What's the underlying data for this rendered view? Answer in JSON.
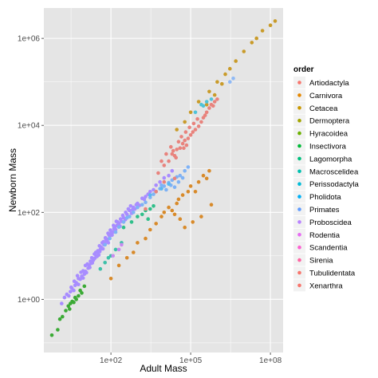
{
  "chart_data": {
    "type": "scatter",
    "xlabel": "Adult Mass",
    "ylabel": "Newborn Mass",
    "x_scale": "log10",
    "y_scale": "log10",
    "xlim": [
      0.3,
      300000000
    ],
    "ylim": [
      0.06,
      5000000
    ],
    "x_ticks": [
      {
        "value": 100,
        "label": "1e+02"
      },
      {
        "value": 100000,
        "label": "1e+05"
      },
      {
        "value": 100000000,
        "label": "1e+08"
      }
    ],
    "y_ticks": [
      {
        "value": 1,
        "label": "1e+00"
      },
      {
        "value": 100,
        "label": "1e+02"
      },
      {
        "value": 10000,
        "label": "1e+04"
      },
      {
        "value": 1000000,
        "label": "1e+06"
      }
    ],
    "grid": true,
    "panel_background": "#e5e5e5",
    "legend": {
      "title": "order",
      "placement": "right",
      "entries": [
        {
          "name": "Artiodactyla",
          "color": "#F8766D"
        },
        {
          "name": "Carnivora",
          "color": "#E58700"
        },
        {
          "name": "Cetacea",
          "color": "#C99800"
        },
        {
          "name": "Dermoptera",
          "color": "#A3A500"
        },
        {
          "name": "Hyracoidea",
          "color": "#6BB100"
        },
        {
          "name": "Insectivora",
          "color": "#00BA38"
        },
        {
          "name": "Lagomorpha",
          "color": "#00BF7D"
        },
        {
          "name": "Macroscelidea",
          "color": "#00C0AF"
        },
        {
          "name": "Perissodactyla",
          "color": "#00BCD8"
        },
        {
          "name": "Pholidota",
          "color": "#00B0F6"
        },
        {
          "name": "Primates",
          "color": "#619CFF"
        },
        {
          "name": "Proboscidea",
          "color": "#B983FF"
        },
        {
          "name": "Rodentia",
          "color": "#E76BF3"
        },
        {
          "name": "Scandentia",
          "color": "#FD61D1"
        },
        {
          "name": "Sirenia",
          "color": "#FF67A4"
        },
        {
          "name": "Tubulidentata",
          "color": "#F8766D"
        },
        {
          "name": "Xenarthra",
          "color": "#F8766D"
        }
      ]
    },
    "series": [
      {
        "name": "Rodentia",
        "color": "#A88CFF",
        "points": [
          [
            1.4,
            0.8
          ],
          [
            1.8,
            1.1
          ],
          [
            2.2,
            1.3
          ],
          [
            2.6,
            1.2
          ],
          [
            3,
            1.5
          ],
          [
            3.4,
            1.8
          ],
          [
            4,
            1.6
          ],
          [
            4.5,
            2.1
          ],
          [
            5,
            2.4
          ],
          [
            6,
            2.2
          ],
          [
            7,
            2.9
          ],
          [
            8,
            3.4
          ],
          [
            9,
            3.1
          ],
          [
            10,
            3.8
          ],
          [
            11,
            4.4
          ],
          [
            12,
            4.1
          ],
          [
            14,
            5.2
          ],
          [
            15,
            6
          ],
          [
            16,
            5.4
          ],
          [
            18,
            6.7
          ],
          [
            20,
            6.9
          ],
          [
            22,
            8
          ],
          [
            25,
            8.8
          ],
          [
            28,
            10
          ],
          [
            30,
            9.7
          ],
          [
            33,
            12
          ],
          [
            35,
            10.5
          ],
          [
            38,
            12.5
          ],
          [
            40,
            14
          ],
          [
            45,
            15
          ],
          [
            50,
            14.5
          ],
          [
            55,
            18
          ],
          [
            60,
            19
          ],
          [
            70,
            22
          ],
          [
            75,
            24
          ],
          [
            80,
            20
          ],
          [
            90,
            28
          ],
          [
            100,
            32
          ],
          [
            110,
            30
          ],
          [
            120,
            35
          ],
          [
            130,
            42
          ],
          [
            150,
            40
          ],
          [
            170,
            50
          ],
          [
            200,
            55
          ],
          [
            220,
            48
          ],
          [
            250,
            62
          ],
          [
            300,
            75
          ],
          [
            350,
            68
          ],
          [
            400,
            90
          ],
          [
            500,
            110
          ],
          [
            600,
            95
          ],
          [
            700,
            130
          ],
          [
            800,
            120
          ],
          [
            900,
            150
          ],
          [
            1000,
            160
          ],
          [
            1200,
            145
          ],
          [
            1500,
            210
          ],
          [
            1800,
            200
          ],
          [
            2000,
            230
          ],
          [
            2500,
            260
          ],
          [
            3000,
            300
          ],
          [
            4000,
            330
          ],
          [
            5000,
            420
          ],
          [
            7000,
            500
          ],
          [
            10000,
            620
          ],
          [
            15000,
            700
          ],
          [
            20000,
            900
          ],
          [
            6,
            3
          ],
          [
            9,
            4.5
          ],
          [
            13,
            6.5
          ],
          [
            17,
            7.5
          ],
          [
            24,
            11
          ],
          [
            32,
            13
          ],
          [
            42,
            16
          ],
          [
            52,
            21
          ],
          [
            65,
            24
          ],
          [
            85,
            30
          ],
          [
            105,
            36
          ],
          [
            140,
            45
          ],
          [
            180,
            60
          ],
          [
            230,
            70
          ],
          [
            280,
            85
          ],
          [
            360,
            100
          ],
          [
            450,
            120
          ],
          [
            550,
            140
          ],
          [
            650,
            115
          ],
          [
            3.2,
            1.9
          ],
          [
            4.2,
            2.6
          ],
          [
            5.5,
            3.5
          ],
          [
            7.5,
            4.2
          ],
          [
            11,
            6
          ],
          [
            19,
            9
          ],
          [
            27,
            12
          ],
          [
            37,
            17
          ],
          [
            47,
            20
          ],
          [
            62,
            26
          ],
          [
            78,
            33
          ],
          [
            95,
            39
          ],
          [
            125,
            50
          ],
          [
            160,
            62
          ]
        ]
      },
      {
        "name": "Primates",
        "color": "#7FB2F5",
        "points": [
          [
            60,
            18
          ],
          [
            90,
            25
          ],
          [
            150,
            35
          ],
          [
            200,
            46
          ],
          [
            300,
            60
          ],
          [
            400,
            75
          ],
          [
            500,
            80
          ],
          [
            700,
            100
          ],
          [
            1000,
            130
          ],
          [
            1500,
            150
          ],
          [
            2000,
            170
          ],
          [
            3000,
            220
          ],
          [
            4000,
            260
          ],
          [
            5000,
            300
          ],
          [
            7000,
            350
          ],
          [
            10000,
            400
          ],
          [
            15000,
            480
          ],
          [
            20000,
            550
          ],
          [
            30000,
            650
          ],
          [
            40000,
            700
          ],
          [
            60000,
            900
          ],
          [
            80000,
            1100
          ],
          [
            25000,
            380
          ],
          [
            12000,
            330
          ],
          [
            8000,
            420
          ],
          [
            35000,
            500
          ],
          [
            50000,
            620
          ],
          [
            18000,
            420
          ]
        ]
      },
      {
        "name": "Artiodactyla",
        "color": "#E8837D",
        "points": [
          [
            6000,
            800
          ],
          [
            10000,
            1200
          ],
          [
            15000,
            1500
          ],
          [
            20000,
            2200
          ],
          [
            25000,
            2000
          ],
          [
            30000,
            2800
          ],
          [
            40000,
            3000
          ],
          [
            50000,
            3800
          ],
          [
            60000,
            4500
          ],
          [
            70000,
            3500
          ],
          [
            80000,
            5000
          ],
          [
            100000,
            6000
          ],
          [
            120000,
            7000
          ],
          [
            150000,
            8000
          ],
          [
            200000,
            9500
          ],
          [
            250000,
            12000
          ],
          [
            300000,
            15000
          ],
          [
            400000,
            20000
          ],
          [
            500000,
            25000
          ],
          [
            600000,
            30000
          ],
          [
            800000,
            35000
          ],
          [
            1000000,
            40000
          ],
          [
            8000,
            1500
          ],
          [
            12000,
            2200
          ],
          [
            18000,
            3200
          ],
          [
            22000,
            2600
          ],
          [
            35000,
            4200
          ],
          [
            45000,
            5500
          ],
          [
            65000,
            7000
          ],
          [
            90000,
            9000
          ],
          [
            130000,
            11000
          ],
          [
            180000,
            14000
          ],
          [
            350000,
            17000
          ],
          [
            700000,
            28000
          ],
          [
            28000,
            1800
          ],
          [
            55000,
            3000
          ]
        ]
      },
      {
        "name": "Carnivora",
        "color": "#D88A2A",
        "points": [
          [
            100,
            3
          ],
          [
            200,
            6
          ],
          [
            400,
            9
          ],
          [
            700,
            12
          ],
          [
            1000,
            20
          ],
          [
            2000,
            25
          ],
          [
            3000,
            40
          ],
          [
            5000,
            55
          ],
          [
            8000,
            80
          ],
          [
            10000,
            100
          ],
          [
            15000,
            130
          ],
          [
            20000,
            110
          ],
          [
            30000,
            160
          ],
          [
            50000,
            250
          ],
          [
            80000,
            300
          ],
          [
            100000,
            400
          ],
          [
            150000,
            300
          ],
          [
            200000,
            500
          ],
          [
            300000,
            700
          ],
          [
            400000,
            600
          ],
          [
            600000,
            150
          ],
          [
            250000,
            80
          ],
          [
            120000,
            60
          ],
          [
            60000,
            45
          ],
          [
            40000,
            70
          ],
          [
            25000,
            90
          ],
          [
            500000,
            900
          ],
          [
            35000,
            200
          ]
        ]
      },
      {
        "name": "Cetacea",
        "color": "#C99B2A",
        "points": [
          [
            30000,
            8000
          ],
          [
            60000,
            12000
          ],
          [
            100000,
            20000
          ],
          [
            200000,
            35000
          ],
          [
            500000,
            60000
          ],
          [
            1000000,
            100000
          ],
          [
            2000000,
            150000
          ],
          [
            5000000,
            300000
          ],
          [
            10000000,
            500000
          ],
          [
            20000000,
            800000
          ],
          [
            30000000,
            1000000
          ],
          [
            50000000,
            1500000
          ],
          [
            100000000,
            2000000
          ],
          [
            150000000,
            2500000
          ],
          [
            3000000,
            200000
          ],
          [
            1500000,
            90000
          ],
          [
            400000,
            30000
          ],
          [
            800000,
            50000
          ]
        ]
      },
      {
        "name": "Insectivora",
        "color": "#3BAA35",
        "points": [
          [
            0.6,
            0.15
          ],
          [
            1,
            0.2
          ],
          [
            1.5,
            0.4
          ],
          [
            2,
            0.55
          ],
          [
            2.5,
            0.7
          ],
          [
            3,
            0.8
          ],
          [
            3.5,
            0.9
          ],
          [
            4,
            0.85
          ],
          [
            5,
            1
          ],
          [
            6,
            1.2
          ],
          [
            8,
            1.4
          ],
          [
            10,
            2
          ],
          [
            1.2,
            0.35
          ],
          [
            2.8,
            0.6
          ],
          [
            4.5,
            1.1
          ],
          [
            7,
            1.6
          ]
        ]
      },
      {
        "name": "Lagomorpha",
        "color": "#2FBF8A",
        "points": [
          [
            300,
            45
          ],
          [
            600,
            60
          ],
          [
            1000,
            80
          ],
          [
            1500,
            90
          ],
          [
            2000,
            110
          ],
          [
            3000,
            120
          ],
          [
            4000,
            140
          ],
          [
            2500,
            70
          ]
        ]
      },
      {
        "name": "Macroscelidea",
        "color": "#3CC0A8",
        "points": [
          [
            40,
            5
          ],
          [
            60,
            7
          ],
          [
            100,
            10
          ],
          [
            150,
            14
          ],
          [
            250,
            20
          ],
          [
            80,
            9
          ]
        ]
      },
      {
        "name": "Perissodactyla",
        "color": "#4FC3D8",
        "points": [
          [
            150000,
            20000
          ],
          [
            250000,
            30000
          ],
          [
            400000,
            35000
          ],
          [
            600000,
            40000
          ],
          [
            300000,
            28000
          ]
        ]
      },
      {
        "name": "Pholidota",
        "color": "#5AB7F0",
        "points": [
          [
            3000,
            250
          ],
          [
            8000,
            350
          ],
          [
            15000,
            450
          ]
        ]
      },
      {
        "name": "Proboscidea",
        "color": "#8FB9F5",
        "points": [
          [
            3000000,
            100000
          ],
          [
            4000000,
            120000
          ]
        ]
      },
      {
        "name": "Scandentia",
        "color": "#C78AF0",
        "points": [
          [
            120,
            10
          ],
          [
            200,
            14
          ],
          [
            250,
            18
          ]
        ]
      },
      {
        "name": "Xenarthra",
        "color": "#E8837D",
        "points": [
          [
            2000,
            120
          ],
          [
            5000,
            300
          ],
          [
            10000,
            500
          ],
          [
            25000,
            600
          ]
        ]
      }
    ]
  }
}
